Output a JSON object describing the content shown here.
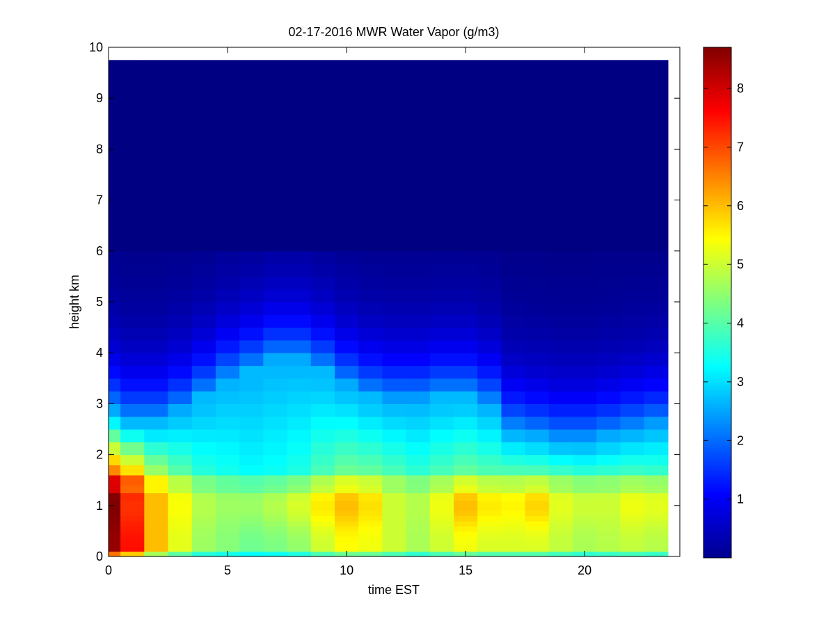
{
  "chart_data": {
    "type": "heatmap",
    "title": "02-17-2016 MWR Water Vapor (g/m3)",
    "xlabel": "time EST",
    "ylabel": "height km",
    "xlim": [
      0,
      24
    ],
    "ylim": [
      0,
      10
    ],
    "x_ticks": [
      0,
      5,
      10,
      15,
      20
    ],
    "y_ticks": [
      0,
      1,
      2,
      3,
      4,
      5,
      6,
      7,
      8,
      9,
      10
    ],
    "colormap": "jet",
    "grid": false,
    "colorbar": {
      "min": 0.0,
      "max": 8.7,
      "ticks": [
        1,
        2,
        3,
        4,
        5,
        6,
        7,
        8
      ],
      "placement": "right"
    },
    "time_bins": {
      "start": 0,
      "step": 1,
      "count": 24,
      "first_bin_width": 0.5,
      "last_edge": 23.5
    },
    "height_levels_km": [
      0,
      0.1,
      0.2,
      0.3,
      0.4,
      0.5,
      0.6,
      0.7,
      0.8,
      0.9,
      1.0,
      1.1,
      1.25,
      1.4,
      1.6,
      1.8,
      2.0,
      2.25,
      2.5,
      2.75,
      3.0,
      3.25,
      3.5,
      3.75,
      4.0,
      4.25,
      4.5,
      4.75,
      5.0,
      5.25,
      5.5,
      5.75,
      6.0,
      6.5,
      7.0,
      7.5,
      8.0,
      8.5,
      9.0,
      9.5,
      9.75
    ],
    "surface_vapor_g_m3": [
      8.5,
      7.5,
      6.0,
      5.2,
      4.6,
      4.4,
      4.2,
      4.3,
      4.5,
      5.0,
      5.4,
      5.3,
      5.0,
      4.7,
      5.0,
      5.3,
      5.1,
      5.1,
      5.1,
      4.9,
      4.7,
      4.8,
      4.9,
      4.8
    ],
    "moist_layer_top_km": [
      2.8,
      2.6,
      2.6,
      2.8,
      3.1,
      3.4,
      3.6,
      3.8,
      3.8,
      3.6,
      3.3,
      3.1,
      3.0,
      3.0,
      3.1,
      3.1,
      2.9,
      2.4,
      2.3,
      2.2,
      2.2,
      2.3,
      2.4,
      2.5
    ],
    "enhanced_layer_near_1km_g_m3": [
      8.7,
      7.2,
      6.0,
      5.4,
      4.8,
      4.6,
      4.6,
      4.8,
      5.1,
      5.6,
      6.0,
      5.7,
      5.0,
      4.8,
      5.3,
      6.0,
      5.6,
      5.5,
      5.8,
      5.2,
      5.0,
      5.0,
      5.3,
      5.2
    ]
  }
}
